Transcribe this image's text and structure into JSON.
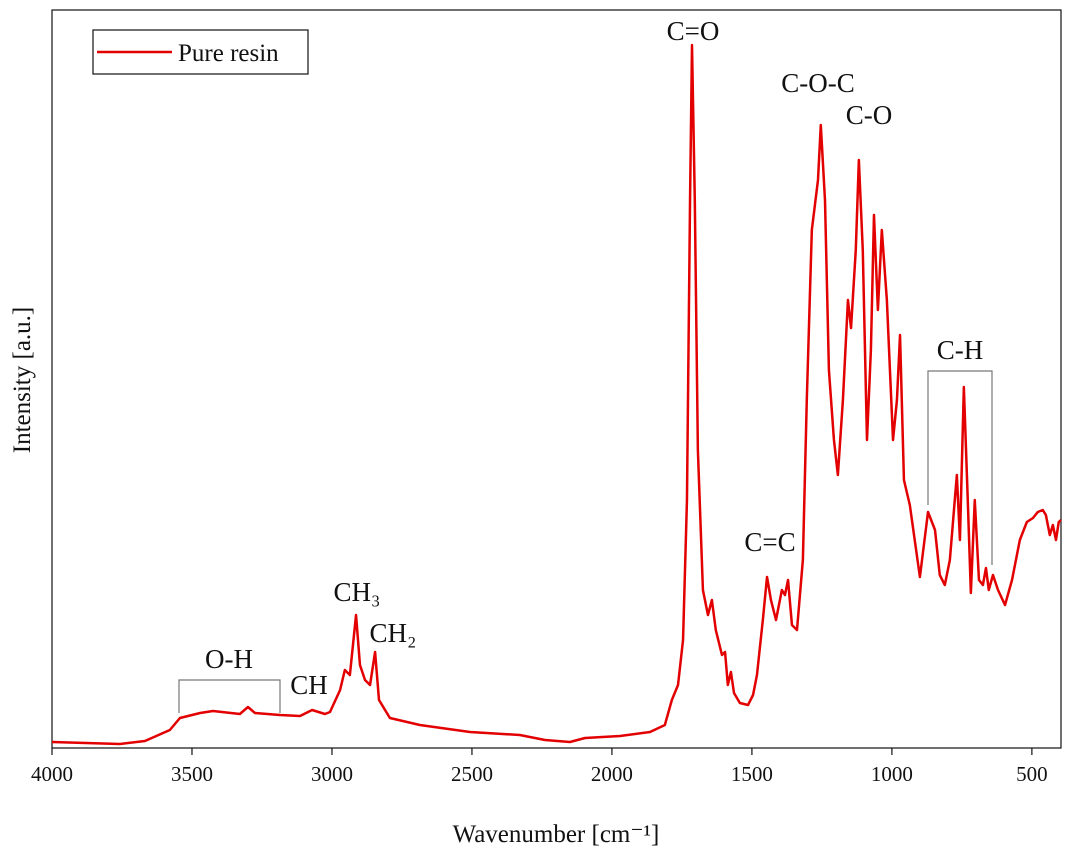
{
  "chart_data": {
    "type": "line",
    "xlabel": "Wavenumber [cm⁻¹]",
    "ylabel": "Intensity [a.u.]",
    "xlim": [
      4000,
      396
    ],
    "xticks": [
      4000,
      3500,
      3000,
      2500,
      2000,
      1500,
      1000,
      500
    ],
    "ylim": [
      0,
      73.8
    ],
    "legend": "upper left",
    "annotations": [
      "C=O",
      "C-O-C",
      "C-O",
      "C=C",
      "CH₃",
      "CH₂",
      "O-H",
      "CH",
      "C-H"
    ],
    "series": [
      {
        "name": "Pure resin",
        "color": "#e30000",
        "x": [
          4000,
          3757,
          3668,
          3579,
          3543,
          3471,
          3425,
          3329,
          3300,
          3275,
          3186,
          3114,
          3071,
          3025,
          3007,
          2971,
          2954,
          2936,
          2914,
          2900,
          2882,
          2864,
          2846,
          2832,
          2793,
          2686,
          2507,
          2329,
          2239,
          2150,
          2096,
          1971,
          1864,
          1811,
          1786,
          1764,
          1746,
          1732,
          1721,
          1714,
          1704,
          1693,
          1675,
          1657,
          1643,
          1629,
          1607,
          1596,
          1586,
          1575,
          1564,
          1543,
          1514,
          1496,
          1482,
          1461,
          1446,
          1432,
          1414,
          1393,
          1382,
          1371,
          1357,
          1339,
          1318,
          1304,
          1286,
          1264,
          1254,
          1239,
          1225,
          1207,
          1193,
          1175,
          1157,
          1146,
          1129,
          1118,
          1104,
          1089,
          1075,
          1064,
          1050,
          1036,
          1018,
          996,
          982,
          971,
          957,
          936,
          900,
          871,
          846,
          829,
          811,
          793,
          768,
          757,
          743,
          729,
          718,
          704,
          689,
          675,
          664,
          654,
          639,
          621,
          596,
          571,
          543,
          518,
          496,
          479,
          461,
          450,
          436,
          425,
          414,
          404,
          396
        ],
        "values": [
          0.6,
          0.4,
          0.7,
          1.8,
          3.0,
          3.5,
          3.7,
          3.4,
          4.1,
          3.5,
          3.3,
          3.2,
          3.8,
          3.4,
          3.6,
          5.8,
          7.8,
          7.3,
          13.3,
          8.3,
          6.8,
          6.3,
          9.6,
          4.8,
          3.0,
          2.3,
          1.6,
          1.3,
          0.8,
          0.6,
          1.0,
          1.2,
          1.6,
          2.3,
          4.8,
          6.3,
          10.8,
          24.8,
          54.8,
          70.3,
          54.8,
          29.8,
          15.8,
          13.3,
          14.8,
          11.8,
          9.3,
          9.6,
          6.3,
          7.6,
          5.5,
          4.5,
          4.3,
          5.3,
          7.3,
          12.8,
          17.1,
          14.8,
          12.8,
          15.8,
          15.3,
          16.8,
          12.3,
          11.8,
          18.8,
          34.8,
          51.8,
          56.8,
          62.3,
          54.8,
          37.8,
          30.8,
          27.3,
          34.8,
          44.8,
          42.0,
          49.8,
          58.8,
          49.8,
          30.8,
          39.8,
          53.3,
          43.8,
          51.8,
          44.8,
          30.8,
          34.8,
          41.3,
          26.8,
          24.3,
          17.1,
          23.6,
          21.8,
          17.3,
          16.3,
          18.8,
          27.3,
          20.8,
          36.1,
          24.8,
          15.5,
          24.8,
          16.8,
          16.3,
          18.0,
          15.8,
          17.3,
          15.8,
          14.3,
          16.8,
          20.8,
          22.6,
          23.0,
          23.6,
          23.8,
          23.3,
          21.3,
          22.3,
          20.8,
          22.6,
          22.8
        ]
      }
    ]
  }
}
